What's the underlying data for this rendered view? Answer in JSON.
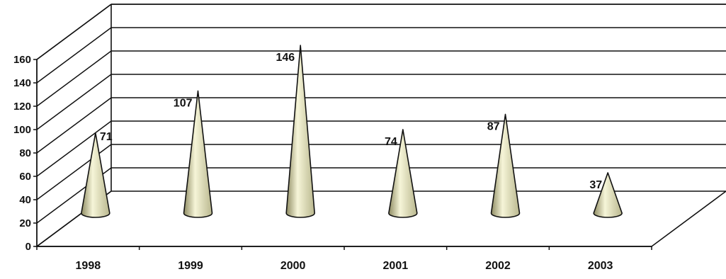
{
  "chart_data": {
    "type": "bar",
    "style": "3d-cone",
    "title": "",
    "xlabel": "",
    "ylabel": "",
    "categories": [
      "1998",
      "1999",
      "2000",
      "2001",
      "2002",
      "2003"
    ],
    "values": [
      71,
      107,
      146,
      74,
      87,
      37
    ],
    "ylim": [
      0,
      160
    ],
    "yticks": [
      "0",
      "20",
      "40",
      "60",
      "80",
      "100",
      "120",
      "140",
      "160"
    ],
    "grid": true,
    "legend": "none",
    "colors": {
      "cone_dark": "#8e8b62",
      "cone_light": "#f6f5d8",
      "cone_outline": "#111111",
      "axis": "#111111",
      "background": "#ffffff"
    }
  }
}
